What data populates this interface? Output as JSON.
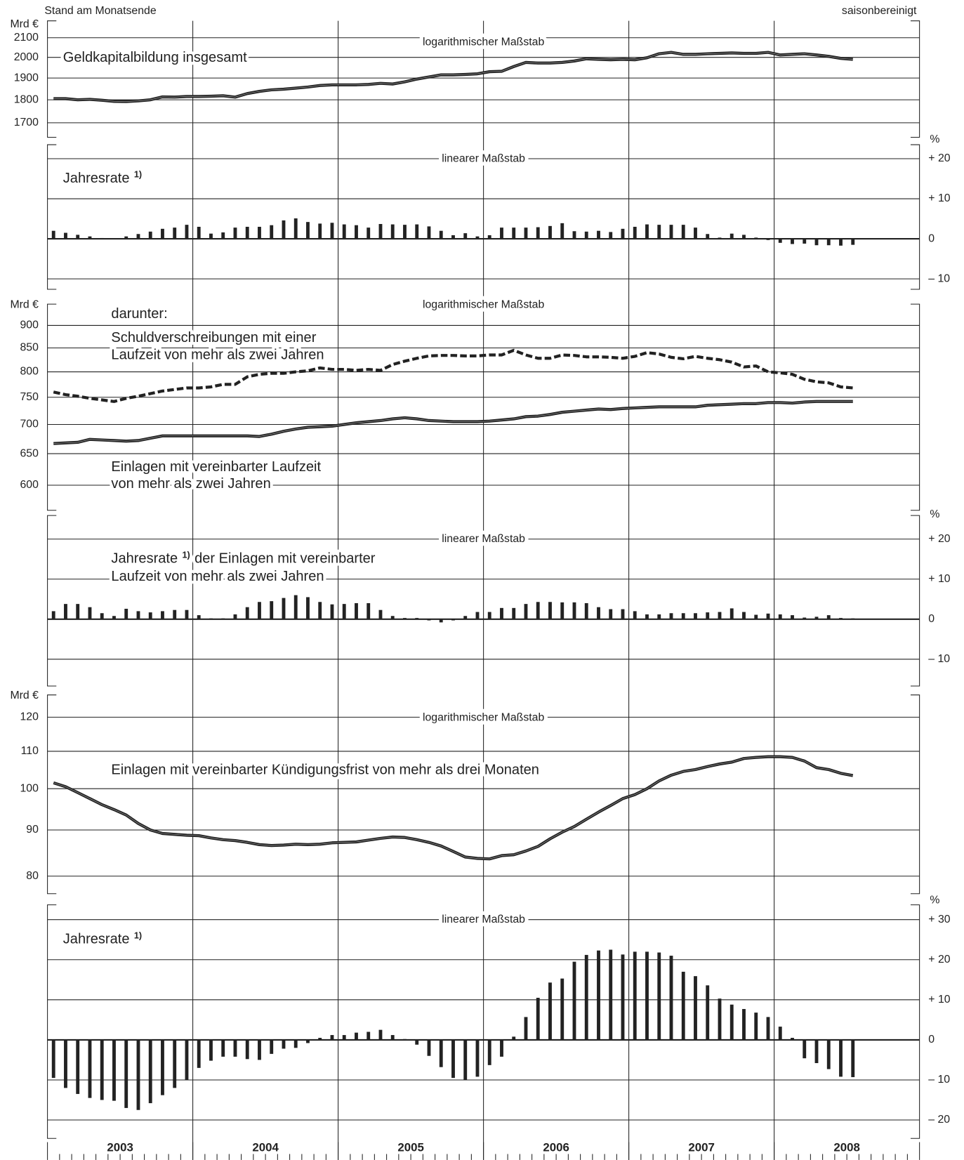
{
  "header": {
    "left": "Stand am Monatsende",
    "right": "saisonbereinigt"
  },
  "x_axis": {
    "categories": [
      "2003",
      "2004",
      "2005",
      "2006",
      "2007",
      "2008"
    ]
  },
  "chart_data": [
    {
      "type": "line",
      "log_scale": true,
      "unit": "Mrd €",
      "subtitle": "logarithmischer Maßstab",
      "annotations": [
        "Geldkapitalbildung insgesamt"
      ],
      "ylim": [
        1640,
        2190
      ],
      "yticks": [
        1700,
        1800,
        1900,
        2000,
        2100
      ],
      "grid": true,
      "series": [
        {
          "color": "#222222",
          "values": [
            1805,
            1805,
            1800,
            1802,
            1798,
            1793,
            1792,
            1795,
            1800,
            1813,
            1812,
            1815,
            1815,
            1816,
            1818,
            1812,
            1828,
            1838,
            1845,
            1848,
            1853,
            1858,
            1865,
            1868,
            1868,
            1868,
            1870,
            1875,
            1872,
            1882,
            1895,
            1905,
            1915,
            1915,
            1917,
            1920,
            1930,
            1932,
            1955,
            1975,
            1972,
            1972,
            1975,
            1982,
            1993,
            1990,
            1988,
            1990,
            1988,
            1998,
            2018,
            2025,
            2015,
            2015,
            2018,
            2020,
            2022,
            2020,
            2020,
            2025,
            2012,
            2015,
            2018,
            2012,
            2005,
            1995,
            1990
          ]
        }
      ]
    },
    {
      "type": "bar",
      "unit": "%",
      "subtitle": "linearer Maßstab",
      "annotations": [
        "Jahresrate"
      ],
      "footnote_mark": "1)",
      "ylim": [
        -12.6,
        23.5
      ],
      "yticks": [
        {
          "value": 20,
          "label": "+ 20"
        },
        {
          "value": 10,
          "label": "+ 10"
        },
        0,
        {
          "value": -10,
          "label": "– 10"
        }
      ],
      "grid": true,
      "color": "#222222",
      "values": [
        2,
        1.5,
        1,
        0.6,
        0.2,
        0.1,
        0.6,
        1.2,
        1.8,
        2.5,
        2.8,
        3.5,
        3,
        1.3,
        1.6,
        2.8,
        3,
        3,
        3.4,
        4.6,
        5.1,
        4.2,
        3.8,
        4,
        3.6,
        3.4,
        2.8,
        3.7,
        3.6,
        3.5,
        3.6,
        3.1,
        2,
        0.9,
        1.4,
        0.6,
        0.9,
        2.8,
        2.8,
        2.8,
        2.9,
        3.2,
        3.9,
        1.9,
        1.8,
        2,
        1.7,
        2.5,
        3,
        3.6,
        3.5,
        3.5,
        3.5,
        2.8,
        1.2,
        0.3,
        1.3,
        1,
        0.3,
        -0.3,
        -1,
        -1.3,
        -1.2,
        -1.6,
        -1.6,
        -1.7,
        -1.5
      ]
    },
    {
      "type": "line",
      "log_scale": true,
      "unit": "Mrd €",
      "subtitle": "logarithmischer Maßstab",
      "annotations": [
        "darunter:",
        "Schuldverschreibungen mit einer",
        "Laufzeit von mehr als zwei Jahren",
        "Einlagen mit vereinbarter Laufzeit",
        "von mehr als zwei Jahren"
      ],
      "ylim": [
        563,
        950
      ],
      "yticks": [
        600,
        650,
        700,
        750,
        800,
        850,
        900
      ],
      "grid": true,
      "series": [
        {
          "color": "#222222",
          "dashed": true,
          "values": [
            760,
            755,
            752,
            748,
            745,
            742,
            748,
            752,
            757,
            762,
            765,
            768,
            768,
            770,
            775,
            775,
            790,
            795,
            797,
            797,
            800,
            802,
            808,
            805,
            805,
            803,
            805,
            803,
            815,
            822,
            828,
            833,
            834,
            834,
            833,
            833,
            835,
            835,
            845,
            835,
            828,
            828,
            835,
            834,
            831,
            831,
            830,
            828,
            832,
            840,
            837,
            830,
            827,
            832,
            828,
            825,
            820,
            810,
            812,
            800,
            798,
            795,
            785,
            780,
            778,
            770,
            768
          ]
        },
        {
          "color": "#222222",
          "values": [
            667,
            668,
            669,
            674,
            673,
            672,
            671,
            672,
            676,
            680,
            680,
            680,
            680,
            680,
            680,
            680,
            680,
            679,
            683,
            688,
            692,
            695,
            696,
            697,
            700,
            703,
            705,
            707,
            710,
            712,
            710,
            707,
            706,
            705,
            705,
            705,
            706,
            708,
            710,
            714,
            715,
            718,
            722,
            724,
            726,
            728,
            727,
            729,
            730,
            731,
            732,
            732,
            732,
            732,
            735,
            736,
            737,
            738,
            738,
            740,
            740,
            739,
            741,
            742,
            742,
            742,
            742
          ]
        }
      ]
    },
    {
      "type": "bar",
      "unit": "%",
      "subtitle": "linearer Maßstab",
      "annotations": [
        "Jahresrate",
        "der Einlagen mit vereinbarter",
        "Laufzeit von mehr als zwei Jahren"
      ],
      "footnote_mark": "1)",
      "ylim": [
        -16.7,
        25.9
      ],
      "yticks": [
        {
          "value": 20,
          "label": "+ 20"
        },
        {
          "value": 10,
          "label": "+ 10"
        },
        0,
        {
          "value": -10,
          "label": "– 10"
        }
      ],
      "grid": true,
      "color": "#222222",
      "values": [
        2,
        3.8,
        3.8,
        3,
        1.5,
        0.8,
        2.6,
        2,
        1.7,
        2,
        2.3,
        2.3,
        1,
        0.2,
        0.2,
        1.2,
        3,
        4.3,
        4.5,
        5.3,
        6,
        5.5,
        4.3,
        3.7,
        3.8,
        4,
        4,
        2.3,
        0.8,
        0.3,
        0.3,
        -0.3,
        -0.8,
        -0.3,
        0.8,
        1.8,
        1.8,
        2.8,
        2.8,
        3.8,
        4.3,
        4.3,
        4.2,
        4.2,
        4,
        3,
        2.5,
        2.5,
        2,
        1.2,
        1.2,
        1.5,
        1.5,
        1.5,
        1.7,
        1.8,
        2.7,
        1.8,
        1.1,
        1.4,
        1.2,
        1,
        0.4,
        0.6,
        1,
        0.3,
        0.2
      ]
    },
    {
      "type": "line",
      "log_scale": true,
      "unit": "Mrd €",
      "subtitle": "logarithmischer Maßstab",
      "annotations": [
        "Einlagen mit vereinbarter Kündigungsfrist von mehr als drei Monaten"
      ],
      "ylim": [
        76.5,
        127
      ],
      "yticks": [
        80,
        90,
        100,
        110,
        120
      ],
      "grid": true,
      "series": [
        {
          "color": "#222222",
          "values": [
            101.5,
            100.5,
            99,
            97.5,
            96,
            94.8,
            93.5,
            91.5,
            90,
            89.2,
            89,
            88.8,
            88.7,
            88.2,
            87.8,
            87.6,
            87.2,
            86.7,
            86.5,
            86.6,
            86.8,
            86.7,
            86.8,
            87.1,
            87.2,
            87.3,
            87.7,
            88.1,
            88.4,
            88.3,
            87.8,
            87.2,
            86.4,
            85.2,
            84,
            83.7,
            83.6,
            84.3,
            84.5,
            85.3,
            86.3,
            88,
            89.5,
            90.8,
            92.5,
            94.2,
            95.8,
            97.5,
            98.5,
            100,
            102,
            103.5,
            104.5,
            105,
            105.8,
            106.5,
            107,
            108,
            108.3,
            108.5,
            108.5,
            108.3,
            107.3,
            105.5,
            105,
            104,
            103.4
          ]
        }
      ]
    },
    {
      "type": "bar",
      "unit": "%",
      "subtitle": "linearer Maßstab",
      "annotations": [
        "Jahresrate"
      ],
      "footnote_mark": "1)",
      "ylim": [
        -24.6,
        33.7
      ],
      "yticks": [
        {
          "value": 30,
          "label": "+ 30"
        },
        {
          "value": 20,
          "label": "+ 20"
        },
        {
          "value": 10,
          "label": "+ 10"
        },
        0,
        {
          "value": -10,
          "label": "– 10"
        },
        {
          "value": -20,
          "label": "– 20"
        }
      ],
      "grid": true,
      "color": "#222222",
      "values": [
        -9.5,
        -12,
        -13.5,
        -14.5,
        -15,
        -15.2,
        -17,
        -17.5,
        -15.8,
        -13.8,
        -12,
        -10,
        -7,
        -5.2,
        -4.2,
        -4.2,
        -4.8,
        -5,
        -3.5,
        -2.2,
        -2,
        -0.8,
        0.5,
        1.2,
        1.2,
        1.8,
        2,
        2.5,
        1.2,
        0.2,
        -1.2,
        -4,
        -6.8,
        -9.5,
        -10,
        -9.2,
        -6.3,
        -4.2,
        0.8,
        5.7,
        10.5,
        14.3,
        15.3,
        19.5,
        21.2,
        22.3,
        22.5,
        21.3,
        22,
        22,
        21.8,
        21,
        17,
        15.9,
        13.6,
        10.3,
        8.8,
        7.7,
        6.8,
        5.7,
        3.3,
        0.5,
        -4.6,
        -5.8,
        -7.3,
        -9.2,
        -9.3
      ]
    }
  ]
}
